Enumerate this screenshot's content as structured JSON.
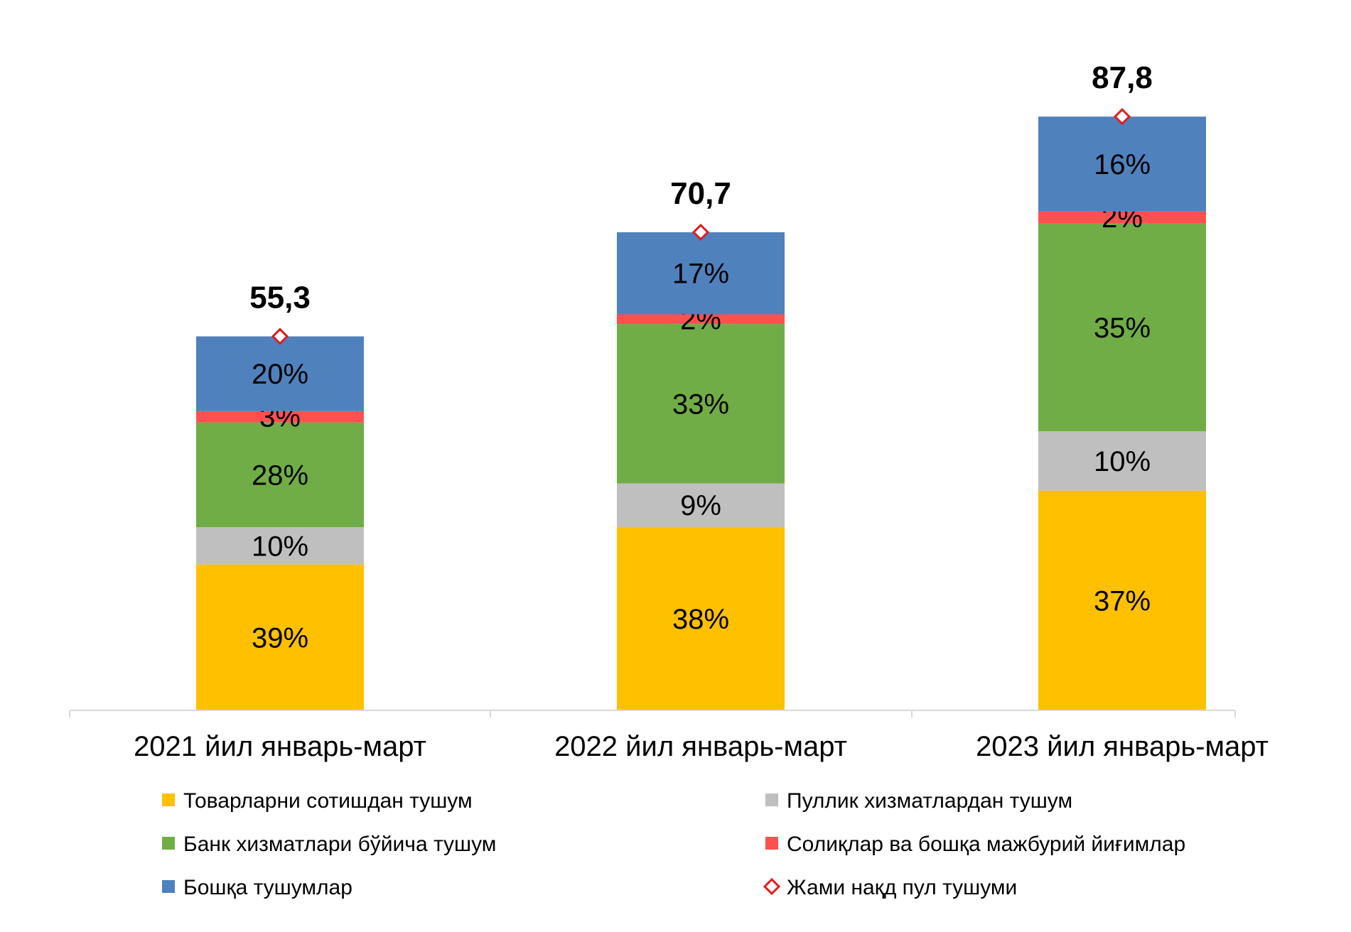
{
  "chart_data": {
    "type": "bar",
    "stacked": true,
    "categories": [
      "2021 йил январь-март",
      "2022 йил январь-март",
      "2023 йил январь-март"
    ],
    "totals": {
      "name": "Жами нақд пул тушуми",
      "values": [
        55.3,
        70.7,
        87.8
      ],
      "labels": [
        "55,3",
        "70,7",
        "87,8"
      ],
      "color": "#e31a1c"
    },
    "series": [
      {
        "name": "Товарларни сотишдан тушум",
        "color": "#ffc000",
        "values": [
          39,
          38,
          37
        ],
        "labels": [
          "39%",
          "38%",
          "37%"
        ]
      },
      {
        "name": "Пуллик хизматлардан тушум",
        "color": "#bfbfbf",
        "values": [
          10,
          9,
          10
        ],
        "labels": [
          "10%",
          "9%",
          "10%"
        ]
      },
      {
        "name": "Банк хизматлари бўйича тушум",
        "color": "#70ad47",
        "values": [
          28,
          33,
          35
        ],
        "labels": [
          "28%",
          "33%",
          "35%"
        ]
      },
      {
        "name": "Солиқлар ва бошқа мажбурий йиғимлар",
        "color": "#ff5050",
        "values": [
          3,
          2,
          2
        ],
        "labels": [
          "3%",
          "2%",
          "2%"
        ]
      },
      {
        "name": "Бошқа тушумлар",
        "color": "#4f81bd",
        "values": [
          20,
          17,
          16
        ],
        "labels": [
          "20%",
          "17%",
          "16%"
        ]
      }
    ],
    "legend_position": "bottom",
    "grid": false
  }
}
